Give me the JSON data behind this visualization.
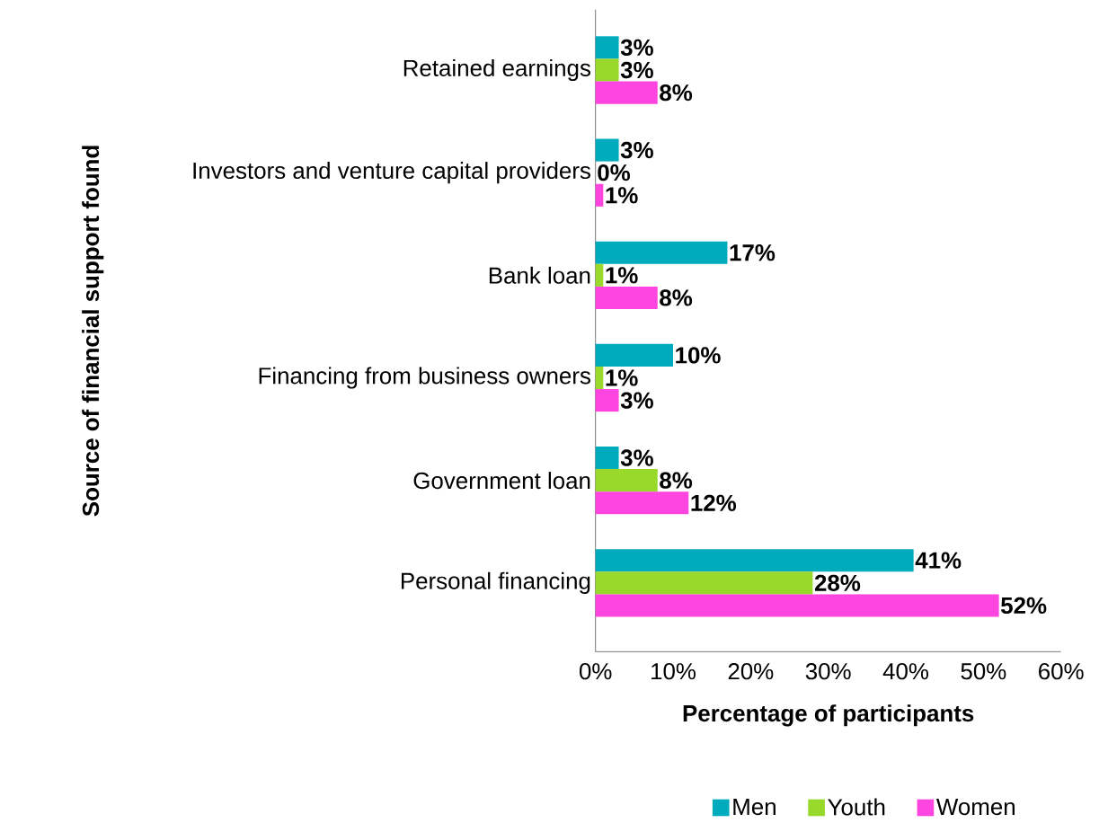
{
  "chart_data": {
    "type": "bar",
    "orientation": "horizontal",
    "xlabel": "Percentage of participants",
    "ylabel": "Source of financial support found",
    "categories": [
      "Retained earnings",
      "Investors and venture capital providers",
      "Bank loan",
      "Financing from business owners",
      "Government loan",
      "Personal financing"
    ],
    "series": [
      {
        "name": "Men",
        "color": "#00abbd",
        "values": [
          3,
          3,
          17,
          10,
          3,
          41
        ],
        "value_labels": [
          "3%",
          "3%",
          "17%",
          "10%",
          "3%",
          "41%"
        ]
      },
      {
        "name": "Youth",
        "color": "#99d92b",
        "values": [
          3,
          0,
          1,
          1,
          8,
          28
        ],
        "value_labels": [
          "3%",
          "0%",
          "1%",
          "1%",
          "8%",
          "28%"
        ]
      },
      {
        "name": "Women",
        "color": "#ff45e0",
        "values": [
          8,
          1,
          8,
          3,
          12,
          52
        ],
        "value_labels": [
          "8%",
          "1%",
          "8%",
          "3%",
          "12%",
          "52%"
        ]
      }
    ],
    "xlim": [
      0,
      60
    ],
    "xticks": [
      {
        "value": 0,
        "label": "0%"
      },
      {
        "value": 10,
        "label": "10%"
      },
      {
        "value": 20,
        "label": "20%"
      },
      {
        "value": 30,
        "label": "30%"
      },
      {
        "value": 40,
        "label": "40%"
      },
      {
        "value": 50,
        "label": "50%"
      },
      {
        "value": 60,
        "label": "60%"
      }
    ],
    "grid": false,
    "legend": "bottom"
  }
}
